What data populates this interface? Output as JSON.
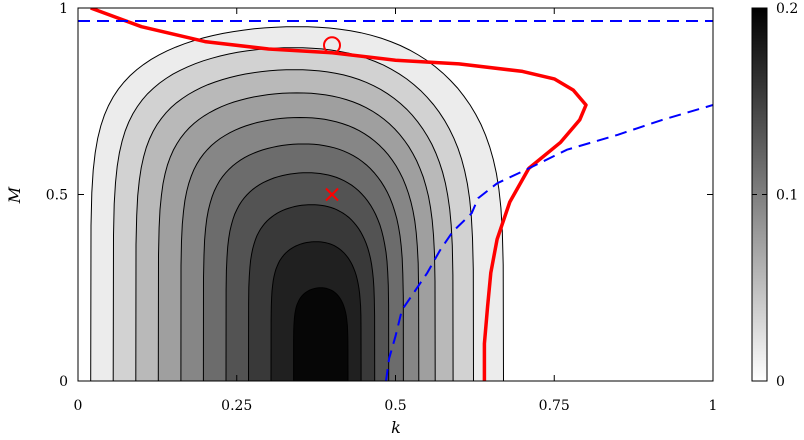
{
  "chart_data": {
    "type": "contour",
    "xlabel": "k",
    "ylabel": "M",
    "xlim": [
      0,
      1
    ],
    "ylim": [
      0,
      1
    ],
    "x_ticks": [
      "0",
      "0.25",
      "0.5",
      "0.75",
      "1"
    ],
    "x_tick_values": [
      0,
      0.25,
      0.5,
      0.75,
      1
    ],
    "y_ticks": [
      "0",
      "0.5",
      "1"
    ],
    "y_tick_values": [
      0,
      0.5,
      1
    ],
    "colorbar": {
      "range": [
        0,
        0.2
      ],
      "ticks": [
        "0",
        "0.1",
        "0.2"
      ],
      "tick_values": [
        0,
        0.1,
        0.2
      ],
      "colormap": "white-to-black"
    },
    "contour_levels": [
      0.02,
      0.04,
      0.06,
      0.08,
      0.1,
      0.12,
      0.14,
      0.16,
      0.18,
      0.2
    ],
    "colors": {
      "feasibility_boundary": "#ff0000",
      "reference_curves": "#0000ff"
    },
    "feasibility_boundary": [
      [
        0.02,
        1.0
      ],
      [
        0.1,
        0.95
      ],
      [
        0.2,
        0.91
      ],
      [
        0.3,
        0.89
      ],
      [
        0.4,
        0.88
      ],
      [
        0.5,
        0.86
      ],
      [
        0.6,
        0.85
      ],
      [
        0.7,
        0.83
      ],
      [
        0.75,
        0.81
      ],
      [
        0.78,
        0.78
      ],
      [
        0.8,
        0.74
      ],
      [
        0.79,
        0.7
      ],
      [
        0.76,
        0.64
      ],
      [
        0.71,
        0.57
      ],
      [
        0.68,
        0.48
      ],
      [
        0.66,
        0.38
      ],
      [
        0.65,
        0.29
      ],
      [
        0.645,
        0.2
      ],
      [
        0.64,
        0.1
      ],
      [
        0.64,
        0.0
      ]
    ],
    "horizontal_reference": {
      "y": 0.965
    },
    "reference_curve": [
      [
        0.485,
        0.0
      ],
      [
        0.49,
        0.06
      ],
      [
        0.5,
        0.12
      ],
      [
        0.51,
        0.19
      ],
      [
        0.53,
        0.24
      ],
      [
        0.55,
        0.29
      ],
      [
        0.57,
        0.35
      ],
      [
        0.59,
        0.4
      ],
      [
        0.62,
        0.45
      ],
      [
        0.63,
        0.49
      ],
      [
        0.66,
        0.53
      ],
      [
        0.71,
        0.57
      ],
      [
        0.77,
        0.62
      ],
      [
        0.85,
        0.66
      ],
      [
        0.92,
        0.7
      ],
      [
        1.0,
        0.74
      ]
    ],
    "markers": [
      {
        "type": "circle",
        "k": 0.4,
        "M": 0.9
      },
      {
        "type": "cross",
        "k": 0.4,
        "M": 0.5
      }
    ]
  }
}
